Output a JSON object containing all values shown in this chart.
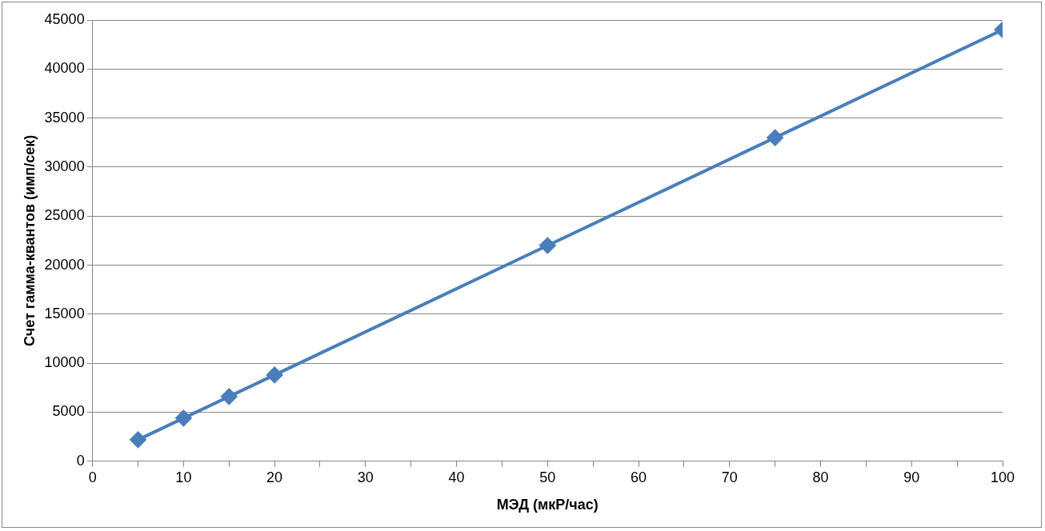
{
  "chart_data": {
    "type": "line",
    "xlabel": "МЭД (мкР/час)",
    "ylabel": "Счет гамма-квантов (имп/сек)",
    "x": [
      5,
      10,
      15,
      20,
      50,
      75,
      100
    ],
    "series": [
      {
        "color": "#4a7ebb",
        "values": [
          2200,
          4400,
          6600,
          8800,
          22000,
          33000,
          44000
        ]
      }
    ],
    "xlim": [
      0,
      100
    ],
    "xticks": [
      0,
      {
        "value": 5,
        "label": null
      },
      10,
      {
        "value": 15,
        "label": null
      },
      20,
      {
        "value": 25,
        "label": null
      },
      30,
      {
        "value": 35,
        "label": null
      },
      40,
      {
        "value": 45,
        "label": null
      },
      50,
      {
        "value": 55,
        "label": null
      },
      60,
      {
        "value": 65,
        "label": null
      },
      70,
      {
        "value": 75,
        "label": null
      },
      80,
      {
        "value": 85,
        "label": null
      },
      90,
      {
        "value": 95,
        "label": null
      },
      100
    ],
    "ylim": [
      0,
      45000
    ],
    "yticks": [
      0,
      5000,
      10000,
      15000,
      20000,
      25000,
      30000,
      35000,
      40000,
      45000
    ],
    "grid": "y",
    "legend": false,
    "marker": "diamond",
    "line_style": "solid"
  }
}
